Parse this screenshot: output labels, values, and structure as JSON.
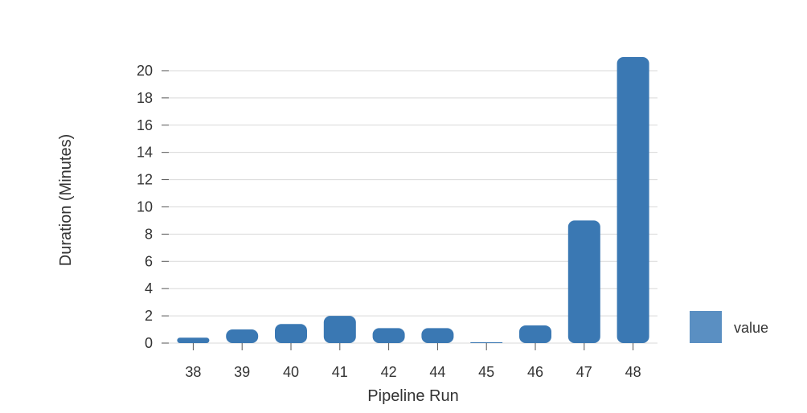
{
  "chart_data": {
    "type": "bar",
    "categories": [
      "38",
      "39",
      "40",
      "41",
      "42",
      "44",
      "45",
      "46",
      "47",
      "48"
    ],
    "series": [
      {
        "name": "value",
        "values": [
          0.4,
          1.0,
          1.4,
          2.0,
          1.1,
          1.1,
          0.05,
          1.3,
          9.0,
          21.0
        ]
      }
    ],
    "xlabel": "Pipeline Run",
    "ylabel": "Duration (Minutes)",
    "ylim": [
      0,
      21
    ],
    "yticks": [
      0,
      2,
      4,
      6,
      8,
      10,
      12,
      14,
      16,
      18,
      20
    ],
    "grid": "horizontal",
    "legend_position": "right",
    "bar_color": "#3a78b3",
    "legend_color": "#5a8fc2",
    "grid_color": "#d9d9d9",
    "axis_color": "#555555"
  }
}
